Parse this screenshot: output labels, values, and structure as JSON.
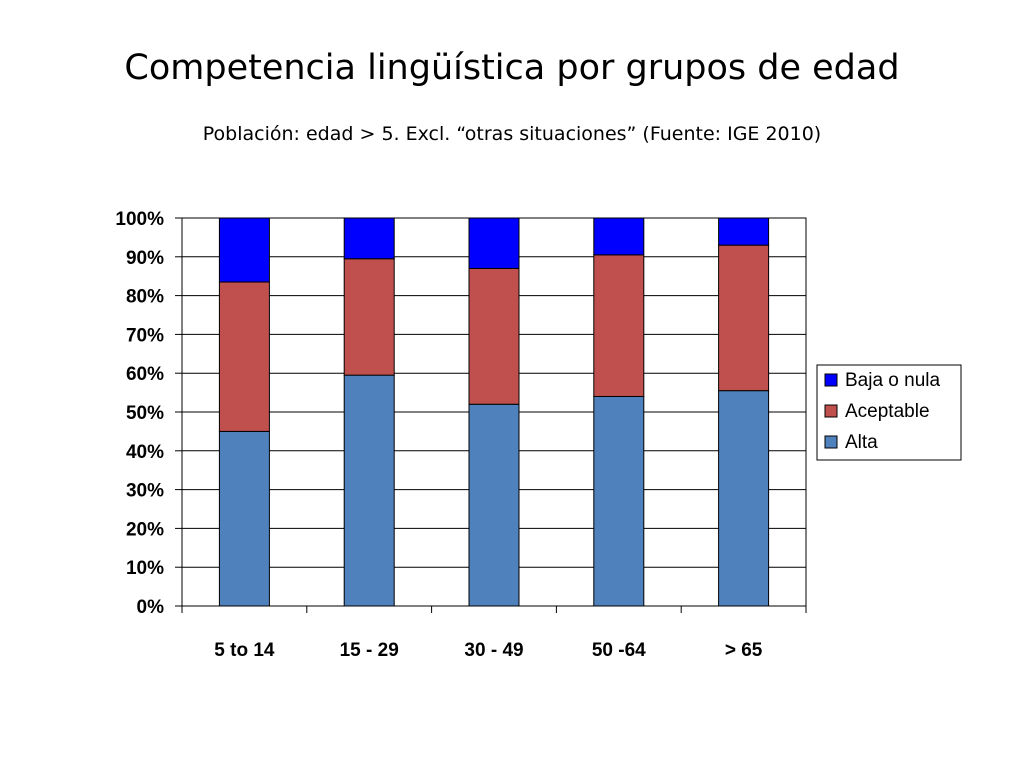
{
  "title": "Competencia lingüística por grupos de edad",
  "subtitle": "Población: edad  > 5. Excl. “otras situaciones” (Fuente: IGE 2010)",
  "chart_data": {
    "type": "bar",
    "stacked": true,
    "title": "Competencia lingüística por grupos de edad",
    "subtitle": "Población: edad  > 5. Excl. “otras situaciones” (Fuente: IGE 2010)",
    "categories": [
      "5 to 14",
      "15 - 29",
      "30 - 49",
      "50 -64",
      "> 65"
    ],
    "series": [
      {
        "name": "Alta",
        "color": "#4f81bd",
        "values": [
          45,
          59.5,
          52,
          54,
          55.5
        ]
      },
      {
        "name": "Aceptable",
        "color": "#c0504d",
        "values": [
          38.5,
          30,
          35,
          36.5,
          37.5
        ]
      },
      {
        "name": "Baja o nula",
        "color": "#0000ff",
        "values": [
          16.5,
          10.5,
          13,
          9.5,
          7
        ]
      }
    ],
    "ylim": [
      0,
      100
    ],
    "yticks": [
      "0%",
      "10%",
      "20%",
      "30%",
      "40%",
      "50%",
      "60%",
      "70%",
      "80%",
      "90%",
      "100%"
    ],
    "grid": true,
    "legend": {
      "position": "right",
      "entries": [
        "Baja o nula",
        "Aceptable",
        "Alta"
      ]
    }
  }
}
